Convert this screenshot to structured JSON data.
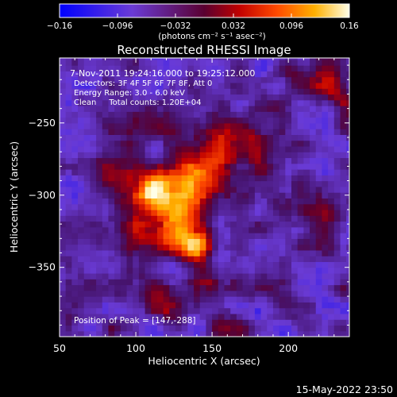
{
  "chart_data": {
    "type": "heatmap",
    "title": "Reconstructed RHESSI Image",
    "xlabel": "Heliocentric X (arcsec)",
    "ylabel": "Heliocentric Y (arcsec)",
    "xlim": [
      50,
      240
    ],
    "ylim": [
      -398,
      -205
    ],
    "xticks": [
      "50",
      "100",
      "150",
      "200"
    ],
    "xtick_values": [
      50,
      100,
      150,
      200
    ],
    "yticks": [
      "-250",
      "-300",
      "-350"
    ],
    "ytick_values": [
      -250,
      -300,
      -350
    ],
    "colorbar": {
      "min": -0.16,
      "max": 0.16,
      "ticks": [
        "-0.16",
        "-0.096",
        "-0.032",
        "0.032",
        "0.096",
        "0.16"
      ],
      "tick_values": [
        -0.16,
        -0.096,
        -0.032,
        0.032,
        0.096,
        0.16
      ],
      "units": "(photons cm⁻² s⁻¹ asec⁻²)"
    },
    "annotations": {
      "time": "7-Nov-2011 19:24:16.000 to 19:25:12.000",
      "detectors": "Detectors: 3F 4F 5F 6F 7F 8F, Att 0",
      "energy": "Energy Range: 3.0 - 6.0 keV",
      "clean": "Clean     Total counts: 1.20E+04",
      "peak": "Position of Peak = [147,-288]"
    },
    "peak": [
      147,
      -288
    ],
    "sources": [
      {
        "x": 112,
        "y": -297,
        "amp": 0.16,
        "sigma": 9
      },
      {
        "x": 135,
        "y": -290,
        "amp": 0.15,
        "sigma": 12
      },
      {
        "x": 130,
        "y": -312,
        "amp": 0.12,
        "sigma": 11
      },
      {
        "x": 140,
        "y": -333,
        "amp": 0.14,
        "sigma": 9
      },
      {
        "x": 120,
        "y": -330,
        "amp": 0.1,
        "sigma": 10
      },
      {
        "x": 100,
        "y": -322,
        "amp": 0.09,
        "sigma": 9
      },
      {
        "x": 93,
        "y": -295,
        "amp": 0.08,
        "sigma": 10
      },
      {
        "x": 155,
        "y": -268,
        "amp": 0.08,
        "sigma": 10
      },
      {
        "x": 176,
        "y": -258,
        "amp": 0.07,
        "sigma": 12
      },
      {
        "x": 148,
        "y": -358,
        "amp": 0.08,
        "sigma": 9
      },
      {
        "x": 120,
        "y": -375,
        "amp": 0.06,
        "sigma": 9
      },
      {
        "x": 95,
        "y": -365,
        "amp": 0.06,
        "sigma": 9
      },
      {
        "x": 80,
        "y": -285,
        "amp": 0.06,
        "sigma": 9
      },
      {
        "x": 110,
        "y": -250,
        "amp": 0.05,
        "sigma": 10
      },
      {
        "x": 228,
        "y": -225,
        "amp": 0.11,
        "sigma": 9
      },
      {
        "x": 205,
        "y": -215,
        "amp": 0.07,
        "sigma": 9
      },
      {
        "x": 222,
        "y": -318,
        "amp": 0.06,
        "sigma": 9
      },
      {
        "x": 185,
        "y": -295,
        "amp": 0.05,
        "sigma": 9
      },
      {
        "x": 70,
        "y": -325,
        "amp": 0.04,
        "sigma": 9
      },
      {
        "x": 160,
        "y": -390,
        "amp": 0.04,
        "sigma": 8
      }
    ],
    "background": -0.06
  },
  "footer_date": "15-May-2022 23:50"
}
